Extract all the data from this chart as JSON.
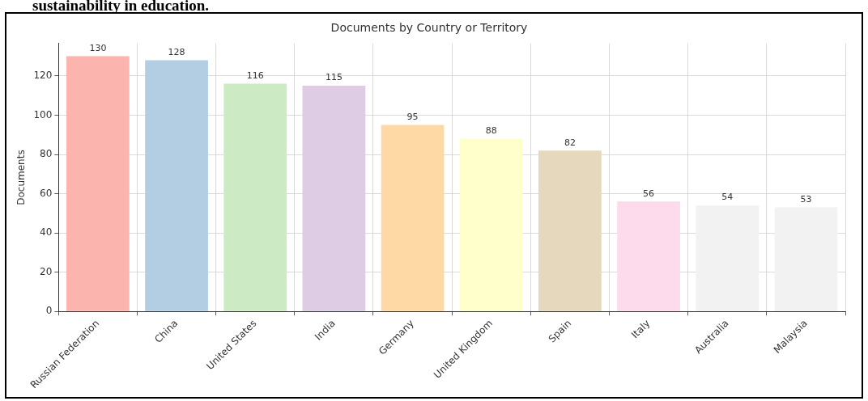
{
  "chart_data": {
    "type": "bar",
    "title": "Documents by Country or Territory",
    "ylabel": "Documents",
    "annotations": [
      "sustainability in education."
    ],
    "categories": [
      "Russian Federation",
      "China",
      "United States",
      "India",
      "Germany",
      "United Kingdom",
      "Spain",
      "Italy",
      "Australia",
      "Malaysia"
    ],
    "values": [
      130,
      128,
      116,
      115,
      95,
      88,
      82,
      56,
      54,
      53
    ],
    "colors": [
      "#fbb4ae",
      "#b3cde3",
      "#ccebc5",
      "#decbe4",
      "#fed9a6",
      "#ffffcc",
      "#e5d8bd",
      "#fddaec",
      "#f2f2f2",
      "#f2f2f2"
    ],
    "ylim": [
      0,
      136.5
    ],
    "yticks": [
      0,
      20,
      40,
      60,
      80,
      100,
      120
    ],
    "grid": true,
    "data_labels": true
  }
}
